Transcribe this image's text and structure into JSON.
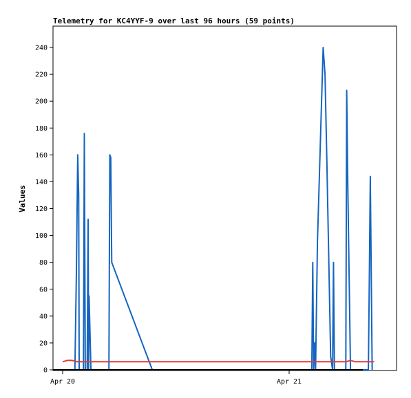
{
  "chart_data": {
    "type": "line",
    "title": "Telemetry for KC4YYF-9 over last 96 hours (59 points)",
    "ylabel": "Values",
    "xlabel": "",
    "ylim": [
      0,
      255
    ],
    "xlim": [
      0,
      48
    ],
    "y_ticks": [
      0,
      20,
      40,
      60,
      80,
      100,
      120,
      140,
      160,
      180,
      200,
      220,
      240
    ],
    "x_ticks": [
      {
        "label": "Apr 20",
        "x": 0
      },
      {
        "label": "Apr 21",
        "x": 24
      }
    ],
    "grid": false,
    "series": [
      {
        "color": "#1565c0",
        "x": [
          1.3,
          1.45,
          1.6,
          1.7,
          1.75,
          2.2,
          2.3,
          2.4,
          2.6,
          2.7,
          2.75,
          2.8,
          3.0,
          4.0,
          4.9,
          5.0,
          5.1,
          5.2,
          9.5,
          26.4,
          26.5,
          26.6,
          26.7,
          26.8,
          27.0,
          27.6,
          27.8,
          28.0,
          28.4,
          28.6,
          28.7,
          28.8,
          29.0,
          30.0,
          30.1,
          30.2,
          30.5,
          30.8,
          32.4,
          32.5,
          32.6,
          32.8
        ],
        "values": [
          0,
          70,
          160,
          130,
          0,
          0,
          176,
          0,
          0,
          112,
          0,
          55,
          0,
          0,
          0,
          160,
          158,
          80,
          0,
          0,
          80,
          0,
          20,
          0,
          95,
          240,
          220,
          155,
          10,
          0,
          80,
          0,
          0,
          0,
          208,
          145,
          0,
          0,
          0,
          70,
          144,
          0
        ]
      },
      {
        "color": "#e53935",
        "x": [
          0,
          0.5,
          1.0,
          1.5,
          2.0,
          3,
          6,
          10,
          14,
          18,
          22,
          26,
          28,
          29,
          30,
          30.5,
          31,
          31.5,
          32,
          33
        ],
        "values": [
          6,
          7,
          7,
          6,
          6,
          6,
          6,
          6,
          6,
          6,
          6,
          6,
          6,
          6,
          6,
          7,
          6,
          6,
          6,
          6
        ]
      }
    ]
  }
}
